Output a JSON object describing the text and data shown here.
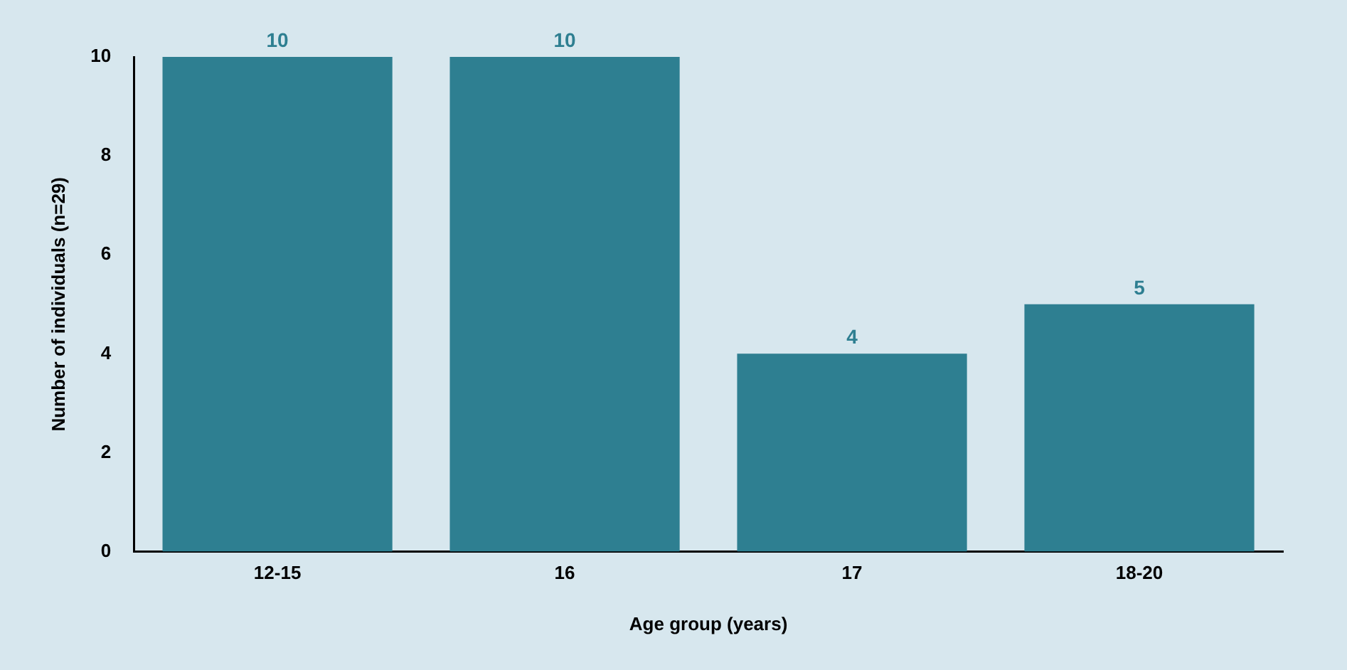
{
  "chart_data": {
    "type": "bar",
    "xlabel": "Age group (years)",
    "ylabel": "Number of individuals (n=29)",
    "categories": [
      "12-15",
      "16",
      "17",
      "18-20"
    ],
    "values": [
      10,
      10,
      4,
      5
    ],
    "color": "#2e7f91",
    "ylim": [
      0,
      10
    ],
    "yticks": [
      0,
      2,
      4,
      6,
      8,
      10
    ],
    "grid": false,
    "legend": false,
    "data_labels": true
  }
}
